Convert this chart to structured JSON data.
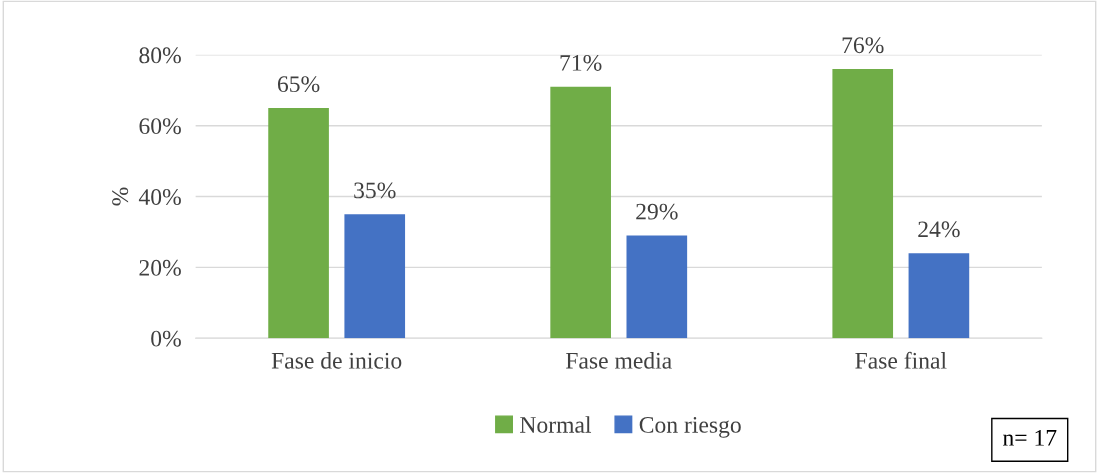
{
  "chart_data": {
    "type": "bar",
    "ylabel": "%",
    "categories": [
      "Fase de inicio",
      "Fase media",
      "Fase final"
    ],
    "series": [
      {
        "name": "Normal",
        "color": "#70ad47",
        "values": [
          65,
          71,
          76
        ],
        "value_labels": [
          "65%",
          "71%",
          "76%"
        ]
      },
      {
        "name": "Con riesgo",
        "color": "#4472c4",
        "values": [
          35,
          29,
          24
        ],
        "value_labels": [
          "35%",
          "29%",
          "24%"
        ]
      }
    ],
    "ylim": [
      0,
      80
    ],
    "yticks": [
      {
        "value": 0,
        "label": "0%"
      },
      {
        "value": 20,
        "label": "20%"
      },
      {
        "value": 40,
        "label": "40%"
      },
      {
        "value": 60,
        "label": "60%"
      },
      {
        "value": 80,
        "label": "80%"
      }
    ],
    "grid": "y",
    "legend": "bottom",
    "annotations": [
      "n= 17"
    ]
  }
}
